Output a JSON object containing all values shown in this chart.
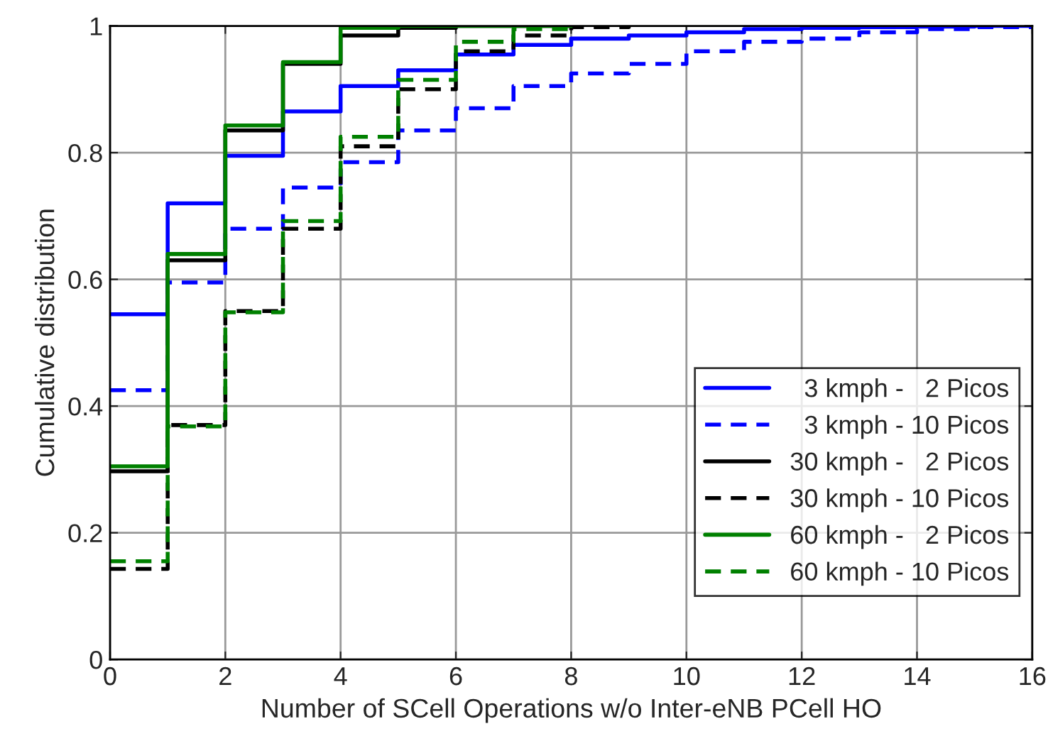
{
  "chart_data": {
    "type": "step",
    "xlabel": "Number of SCell Operations w/o Inter-eNB PCell HO",
    "ylabel": "Cumulative distribution",
    "xlim": [
      0,
      16
    ],
    "xticks": [
      0,
      2,
      4,
      6,
      8,
      10,
      12,
      14,
      16
    ],
    "ylim": [
      0,
      1
    ],
    "yticks": [
      0,
      0.2,
      0.4,
      0.6,
      0.8,
      1
    ],
    "grid": true,
    "legend": "bottom right",
    "series": [
      {
        "name": "  3 kmph -   2 Picos",
        "color": "#0000ff",
        "line_style": "solid",
        "x": [
          0,
          1,
          2,
          3,
          4,
          5,
          6,
          7,
          8,
          9,
          10,
          11,
          12,
          13,
          14,
          15,
          16
        ],
        "values": [
          0.545,
          0.72,
          0.795,
          0.865,
          0.905,
          0.93,
          0.955,
          0.97,
          0.98,
          0.985,
          0.99,
          0.995,
          0.997,
          0.998,
          0.999,
          1,
          1
        ]
      },
      {
        "name": "  3 kmph - 10 Picos",
        "color": "#0000ff",
        "line_style": "dashed",
        "x": [
          0,
          1,
          2,
          3,
          4,
          5,
          6,
          7,
          8,
          9,
          10,
          11,
          12,
          13,
          14,
          15,
          16
        ],
        "values": [
          0.425,
          0.595,
          0.68,
          0.745,
          0.785,
          0.835,
          0.87,
          0.905,
          0.925,
          0.94,
          0.96,
          0.975,
          0.98,
          0.99,
          0.995,
          0.998,
          1
        ]
      },
      {
        "name": "30 kmph -   2 Picos",
        "color": "#000000",
        "line_style": "solid",
        "x": [
          0,
          1,
          2,
          3,
          4,
          5,
          6,
          7,
          8
        ],
        "values": [
          0.297,
          0.63,
          0.835,
          0.94,
          0.985,
          0.997,
          1,
          1,
          1
        ]
      },
      {
        "name": "30 kmph - 10 Picos",
        "color": "#000000",
        "line_style": "dashed",
        "x": [
          0,
          1,
          2,
          3,
          4,
          5,
          6,
          7,
          8,
          9
        ],
        "values": [
          0.143,
          0.37,
          0.55,
          0.68,
          0.81,
          0.9,
          0.96,
          0.985,
          0.998,
          1
        ]
      },
      {
        "name": "60 kmph -   2 Picos",
        "color": "#008000",
        "line_style": "solid",
        "x": [
          0,
          1,
          2,
          3,
          4,
          5,
          6,
          7,
          8
        ],
        "values": [
          0.305,
          0.64,
          0.843,
          0.943,
          0.997,
          1,
          1,
          1,
          1
        ]
      },
      {
        "name": "60 kmph - 10 Picos",
        "color": "#008000",
        "line_style": "dashed",
        "x": [
          0,
          1,
          2,
          3,
          4,
          5,
          6,
          7,
          8
        ],
        "values": [
          0.155,
          0.368,
          0.548,
          0.692,
          0.825,
          0.915,
          0.975,
          0.995,
          1
        ]
      }
    ]
  }
}
